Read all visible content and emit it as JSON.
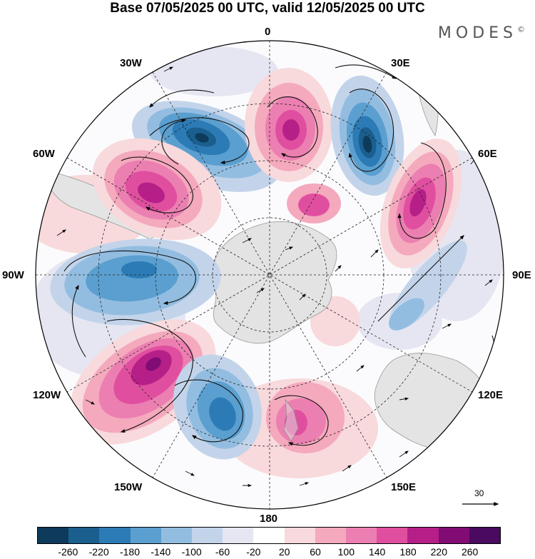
{
  "title": "Base 07/05/2025 00 UTC, valid 12/05/2025 00 UTC",
  "brand": "MODES",
  "brand_mark": "©",
  "longitude_labels": {
    "n0": "0",
    "n30e": "30E",
    "n60e": "60E",
    "n90e": "90E",
    "n120e": "120E",
    "n150e": "150E",
    "n180": "180",
    "n150w": "150W",
    "n120w": "120W",
    "n90w": "90W",
    "n60w": "60W",
    "n30w": "30W"
  },
  "vector_scale": "30",
  "colorbar": {
    "colors": [
      "#0e3a5c",
      "#1b5f8e",
      "#2c7bb6",
      "#5a9fcf",
      "#93bde0",
      "#c3d4ea",
      "#e6e6f2",
      "#ffffff",
      "#f8d9dc",
      "#f4a9bd",
      "#ec7fb1",
      "#e04f9f",
      "#b61f88",
      "#800c74",
      "#4a0a60"
    ],
    "ticks": [
      "-260",
      "-220",
      "-180",
      "-140",
      "-100",
      "-60",
      "-20",
      "20",
      "60",
      "100",
      "140",
      "180",
      "220",
      "260"
    ]
  },
  "anomaly_cells": [
    {
      "name": "trough-south-atlantic",
      "sign": "neg",
      "level": 4
    },
    {
      "name": "ridge-south-of-africa",
      "sign": "pos",
      "level": 3
    },
    {
      "name": "trough-indian-west",
      "sign": "neg",
      "level": 4
    },
    {
      "name": "ridge-indian",
      "sign": "pos",
      "level": 3
    },
    {
      "name": "ridge-south-america",
      "sign": "pos",
      "level": 3
    },
    {
      "name": "trough-southeast-pacific",
      "sign": "neg",
      "level": 3
    },
    {
      "name": "ridge-south-pacific",
      "sign": "pos",
      "level": 4
    },
    {
      "name": "trough-ross-sea",
      "sign": "neg",
      "level": 3
    },
    {
      "name": "ridge-new-zealand",
      "sign": "pos",
      "level": 3
    }
  ]
}
